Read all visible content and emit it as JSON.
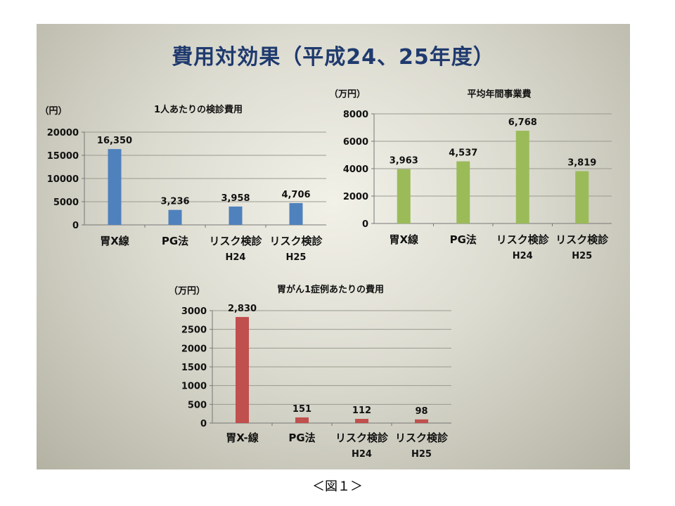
{
  "title": "費用対効果（平成24、25年度）",
  "caption": "＜図１＞",
  "chart_data": [
    {
      "type": "bar",
      "title": "1人あたりの検診費用",
      "ylabel": "（円）",
      "ylim": [
        0,
        20000
      ],
      "yticks": [
        0,
        5000,
        10000,
        15000,
        20000
      ],
      "categories": [
        [
          "胃X線"
        ],
        [
          "PG法"
        ],
        [
          "リスク検診",
          "H24"
        ],
        [
          "リスク検診",
          "H25"
        ]
      ],
      "values": [
        16350,
        3236,
        3958,
        4706
      ],
      "value_labels": [
        "16,350",
        "3,236",
        "3,958",
        "4,706"
      ],
      "color": "#4f81bd",
      "grid": true
    },
    {
      "type": "bar",
      "title": "平均年間事業費",
      "ylabel": "（万円）",
      "ylim": [
        0,
        8000
      ],
      "yticks": [
        0,
        2000,
        4000,
        6000,
        8000
      ],
      "categories": [
        [
          "胃X線"
        ],
        [
          "PG法"
        ],
        [
          "リスク検診",
          "H24"
        ],
        [
          "リスク検診",
          "H25"
        ]
      ],
      "values": [
        3963,
        4537,
        6768,
        3819
      ],
      "value_labels": [
        "3,963",
        "4,537",
        "6,768",
        "3,819"
      ],
      "color": "#9bbb59",
      "grid": true
    },
    {
      "type": "bar",
      "title": "胃がん1症例あたりの費用",
      "ylabel": "（万円）",
      "ylim": [
        0,
        3000
      ],
      "yticks": [
        0,
        500,
        1000,
        1500,
        2000,
        2500,
        3000
      ],
      "categories": [
        [
          "胃X-線"
        ],
        [
          "PG法"
        ],
        [
          "リスク検診",
          "H24"
        ],
        [
          "リスク検診",
          "H25"
        ]
      ],
      "values": [
        2830,
        151,
        112,
        98
      ],
      "value_labels": [
        "2,830",
        "151",
        "112",
        "98"
      ],
      "color": "#c0504d",
      "grid": true
    }
  ]
}
